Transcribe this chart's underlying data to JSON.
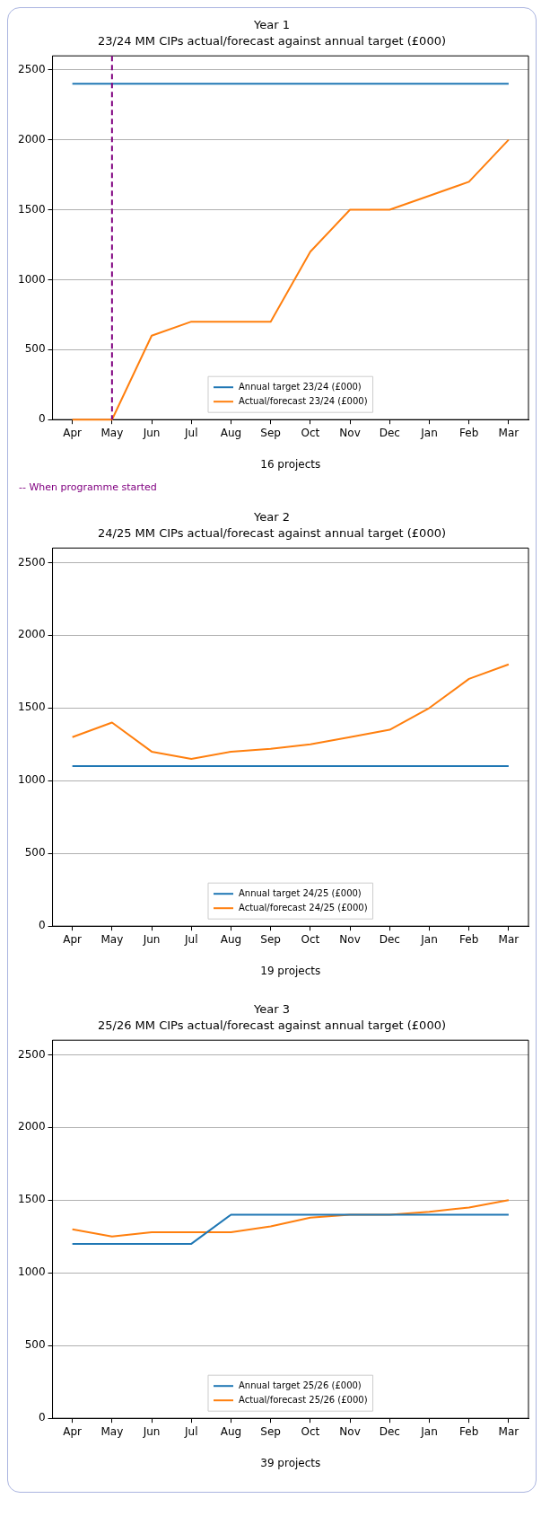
{
  "chart_data": [
    {
      "type": "line",
      "title": "Year 1",
      "subtitle": "23/24 MM CIPs actual/forecast against annual target (£000)",
      "xlabel": "16 projects",
      "categories": [
        "Apr",
        "May",
        "Jun",
        "Jul",
        "Aug",
        "Sep",
        "Oct",
        "Nov",
        "Dec",
        "Jan",
        "Feb",
        "Mar"
      ],
      "series": [
        {
          "name": "Annual target 23/24 (£000)",
          "color": "#1f77b4",
          "values": [
            2400,
            2400,
            2400,
            2400,
            2400,
            2400,
            2400,
            2400,
            2400,
            2400,
            2400,
            2400
          ]
        },
        {
          "name": "Actual/forecast 23/24 (£000)",
          "color": "#ff7f0e",
          "values": [
            0,
            0,
            600,
            700,
            700,
            700,
            1200,
            1500,
            1500,
            1600,
            1700,
            2000
          ]
        }
      ],
      "ref_lines": [
        {
          "axis": "x",
          "value": "May",
          "label": "-- When programme started",
          "color": "#800080",
          "line_style": "dashed"
        }
      ],
      "ylim": [
        0,
        2600
      ],
      "yticks": [
        0,
        500,
        1000,
        1500,
        2000,
        2500
      ],
      "grid": "y",
      "legend": "bottom",
      "line_style": "solid",
      "marker": "none"
    },
    {
      "type": "line",
      "title": "Year 2",
      "subtitle": "24/25 MM CIPs actual/forecast against annual target (£000)",
      "xlabel": "19 projects",
      "categories": [
        "Apr",
        "May",
        "Jun",
        "Jul",
        "Aug",
        "Sep",
        "Oct",
        "Nov",
        "Dec",
        "Jan",
        "Feb",
        "Mar"
      ],
      "series": [
        {
          "name": "Annual target 24/25 (£000)",
          "color": "#1f77b4",
          "values": [
            1100,
            1100,
            1100,
            1100,
            1100,
            1100,
            1100,
            1100,
            1100,
            1100,
            1100,
            1100
          ]
        },
        {
          "name": "Actual/forecast 24/25 (£000)",
          "color": "#ff7f0e",
          "values": [
            1300,
            1400,
            1200,
            1150,
            1200,
            1220,
            1250,
            1300,
            1350,
            1500,
            1700,
            1800
          ]
        }
      ],
      "ylim": [
        0,
        2600
      ],
      "yticks": [
        0,
        500,
        1000,
        1500,
        2000,
        2500
      ],
      "grid": "y",
      "legend": "bottom",
      "line_style": "solid",
      "marker": "none"
    },
    {
      "type": "line",
      "title": "Year 3",
      "subtitle": "25/26 MM CIPs actual/forecast against annual target (£000)",
      "xlabel": "39 projects",
      "categories": [
        "Apr",
        "May",
        "Jun",
        "Jul",
        "Aug",
        "Sep",
        "Oct",
        "Nov",
        "Dec",
        "Jan",
        "Feb",
        "Mar"
      ],
      "series": [
        {
          "name": "Annual target 25/26 (£000)",
          "color": "#1f77b4",
          "values": [
            1200,
            1200,
            1200,
            1200,
            1400,
            1400,
            1400,
            1400,
            1400,
            1400,
            1400,
            1400
          ]
        },
        {
          "name": "Actual/forecast 25/26 (£000)",
          "color": "#ff7f0e",
          "values": [
            1300,
            1250,
            1280,
            1280,
            1280,
            1320,
            1380,
            1400,
            1400,
            1420,
            1450,
            1500
          ]
        }
      ],
      "ylim": [
        0,
        2600
      ],
      "yticks": [
        0,
        500,
        1000,
        1500,
        2000,
        2500
      ],
      "grid": "y",
      "legend": "bottom",
      "line_style": "solid",
      "marker": "none"
    }
  ]
}
